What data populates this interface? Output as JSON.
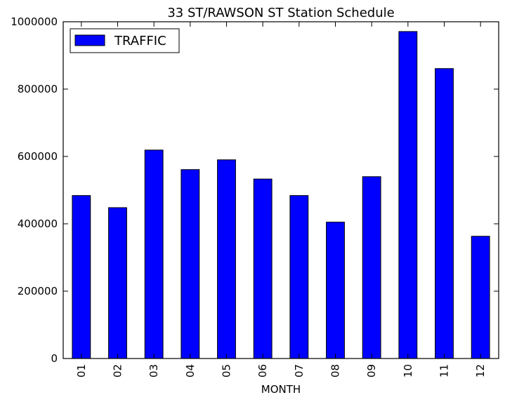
{
  "chart_data": {
    "type": "bar",
    "title": "33 ST/RAWSON ST Station Schedule",
    "xlabel": "MONTH",
    "ylabel": "",
    "categories": [
      "01",
      "02",
      "03",
      "04",
      "05",
      "06",
      "07",
      "08",
      "09",
      "10",
      "11",
      "12"
    ],
    "series": [
      {
        "name": "TRAFFIC",
        "values": [
          484000,
          448000,
          619000,
          561000,
          590000,
          533000,
          484000,
          405000,
          540000,
          971000,
          861000,
          363000
        ]
      }
    ],
    "ylim": [
      0,
      1000000
    ],
    "yticks": [
      0,
      200000,
      400000,
      600000,
      800000,
      1000000
    ],
    "ytick_labels": [
      "0",
      "200000",
      "400000",
      "600000",
      "800000",
      "1000000"
    ],
    "bar_color": "#0000ff",
    "edge_color": "#000000",
    "grid": false,
    "legend_position": "top-left",
    "xtick_rotation": "vertical"
  }
}
